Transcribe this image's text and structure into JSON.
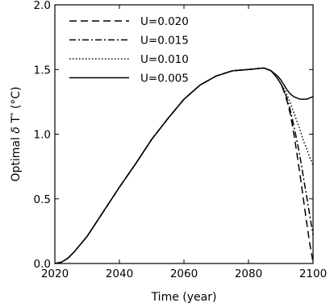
{
  "chart_data": {
    "type": "line",
    "title": "",
    "xlabel": "Time (year)",
    "ylabel": "Optimal δ T* (°C)",
    "ylabel_parts": {
      "pre": "Optimal ",
      "delta": "δ",
      "var": " T",
      "star": "*",
      "unit": " (°C)"
    },
    "xlim": [
      2020,
      2100
    ],
    "ylim": [
      0.0,
      2.0
    ],
    "xticks": [
      2020,
      2040,
      2060,
      2080,
      2100
    ],
    "yticks": [
      0.0,
      0.5,
      1.0,
      1.5,
      2.0
    ],
    "ytick_labels": [
      "0.0",
      "0.5",
      "1.0",
      "1.5",
      "2.0"
    ],
    "grid": false,
    "legend_position": "top-left",
    "series": [
      {
        "name": "U=0.020",
        "style": "dashed",
        "color": "#000000",
        "x": [
          2020,
          2022,
          2024,
          2026,
          2028,
          2030,
          2035,
          2040,
          2045,
          2050,
          2055,
          2060,
          2065,
          2070,
          2075,
          2080,
          2082,
          2084,
          2085,
          2086,
          2087,
          2088,
          2089,
          2090,
          2091,
          2092,
          2093,
          2094,
          2095,
          2096,
          2097,
          2098,
          2099,
          2100
        ],
        "y": [
          0.0,
          0.01,
          0.04,
          0.09,
          0.15,
          0.21,
          0.4,
          0.59,
          0.77,
          0.96,
          1.12,
          1.27,
          1.38,
          1.45,
          1.49,
          1.5,
          1.505,
          1.51,
          1.51,
          1.5,
          1.49,
          1.46,
          1.43,
          1.39,
          1.33,
          1.25,
          1.15,
          1.01,
          0.85,
          0.68,
          0.5,
          0.32,
          0.15,
          0.01
        ]
      },
      {
        "name": "U=0.015",
        "style": "dashdot",
        "color": "#000000",
        "x": [
          2020,
          2022,
          2024,
          2026,
          2028,
          2030,
          2035,
          2040,
          2045,
          2050,
          2055,
          2060,
          2065,
          2070,
          2075,
          2080,
          2082,
          2084,
          2085,
          2086,
          2087,
          2088,
          2089,
          2090,
          2091,
          2092,
          2093,
          2094,
          2095,
          2096,
          2097,
          2098,
          2099,
          2100
        ],
        "y": [
          0.0,
          0.01,
          0.04,
          0.09,
          0.15,
          0.21,
          0.4,
          0.59,
          0.77,
          0.96,
          1.12,
          1.27,
          1.38,
          1.45,
          1.49,
          1.5,
          1.505,
          1.51,
          1.51,
          1.5,
          1.49,
          1.46,
          1.43,
          1.39,
          1.34,
          1.27,
          1.18,
          1.07,
          0.95,
          0.82,
          0.67,
          0.52,
          0.37,
          0.22
        ]
      },
      {
        "name": "U=0.010",
        "style": "dotted",
        "color": "#000000",
        "x": [
          2020,
          2022,
          2024,
          2026,
          2028,
          2030,
          2035,
          2040,
          2045,
          2050,
          2055,
          2060,
          2065,
          2070,
          2075,
          2080,
          2082,
          2084,
          2085,
          2086,
          2087,
          2088,
          2089,
          2090,
          2091,
          2092,
          2093,
          2094,
          2095,
          2096,
          2097,
          2098,
          2099,
          2100
        ],
        "y": [
          0.0,
          0.01,
          0.04,
          0.09,
          0.15,
          0.21,
          0.4,
          0.59,
          0.77,
          0.96,
          1.12,
          1.27,
          1.38,
          1.45,
          1.49,
          1.5,
          1.505,
          1.51,
          1.51,
          1.5,
          1.49,
          1.46,
          1.43,
          1.39,
          1.35,
          1.3,
          1.24,
          1.17,
          1.1,
          1.03,
          0.95,
          0.89,
          0.82,
          0.76
        ]
      },
      {
        "name": "U=0.005",
        "style": "solid",
        "color": "#000000",
        "x": [
          2020,
          2022,
          2024,
          2026,
          2028,
          2030,
          2035,
          2040,
          2045,
          2050,
          2055,
          2060,
          2065,
          2070,
          2075,
          2080,
          2082,
          2084,
          2085,
          2086,
          2087,
          2088,
          2089,
          2090,
          2091,
          2092,
          2093,
          2094,
          2095,
          2096,
          2097,
          2098,
          2099,
          2100
        ],
        "y": [
          0.0,
          0.01,
          0.04,
          0.09,
          0.15,
          0.21,
          0.4,
          0.59,
          0.77,
          0.96,
          1.12,
          1.27,
          1.38,
          1.45,
          1.49,
          1.5,
          1.505,
          1.51,
          1.51,
          1.5,
          1.49,
          1.47,
          1.45,
          1.42,
          1.38,
          1.34,
          1.31,
          1.29,
          1.28,
          1.27,
          1.27,
          1.27,
          1.28,
          1.29
        ]
      }
    ]
  }
}
